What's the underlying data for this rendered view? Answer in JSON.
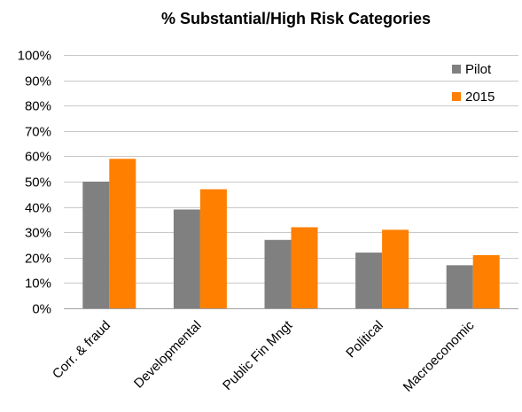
{
  "chart_data": {
    "type": "bar",
    "title": "% Substantial/High Risk Categories",
    "xlabel": "",
    "ylabel": "",
    "categories": [
      "Corr. & fraud",
      "Developmental",
      "Public Fin Mngt",
      "Political",
      "Macroeconomic"
    ],
    "series": [
      {
        "name": "Pilot",
        "color": "#808080",
        "values": [
          50,
          39,
          27,
          22,
          17
        ]
      },
      {
        "name": "2015",
        "color": "#ff7f00",
        "values": [
          59,
          47,
          32,
          31,
          21
        ]
      }
    ],
    "ylim": [
      0,
      100
    ],
    "yticks": [
      "0%",
      "10%",
      "20%",
      "30%",
      "40%",
      "50%",
      "60%",
      "70%",
      "80%",
      "90%",
      "100%"
    ],
    "grid": true,
    "legend_position": "top-right"
  }
}
